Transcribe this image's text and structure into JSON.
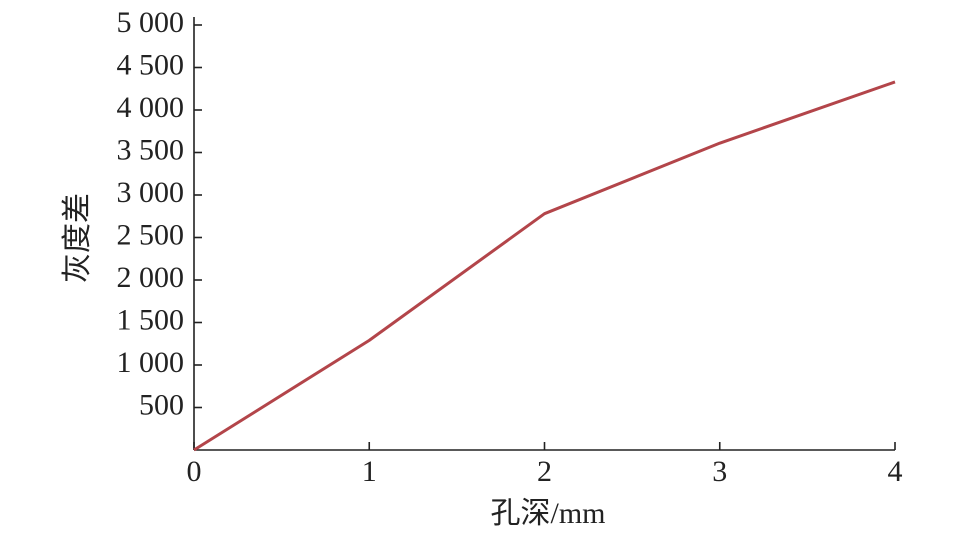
{
  "chart_data": {
    "type": "line",
    "x_label": "孔深/mm",
    "y_label": "灰度差",
    "x": [
      0,
      1,
      2,
      3,
      4
    ],
    "series": [
      {
        "name": "灰度差",
        "color": "#b3454a",
        "values": [
          0,
          1290,
          2780,
          3610,
          4330
        ]
      }
    ],
    "xlim": [
      0,
      4
    ],
    "xticks": [
      0,
      1,
      2,
      3,
      4
    ],
    "ylim": [
      0,
      5000
    ],
    "yticks": [
      500,
      {
        "value": 1000,
        "label": "1 000"
      },
      {
        "value": 1500,
        "label": "1 500"
      },
      {
        "value": 2000,
        "label": "2 000"
      },
      {
        "value": 2500,
        "label": "2 500"
      },
      {
        "value": 3000,
        "label": "3 000"
      },
      {
        "value": 3500,
        "label": "3 500"
      },
      {
        "value": 4000,
        "label": "4 000"
      },
      {
        "value": 4500,
        "label": "4 500"
      },
      {
        "value": 5000,
        "label": "5 000"
      }
    ],
    "grid": false
  }
}
